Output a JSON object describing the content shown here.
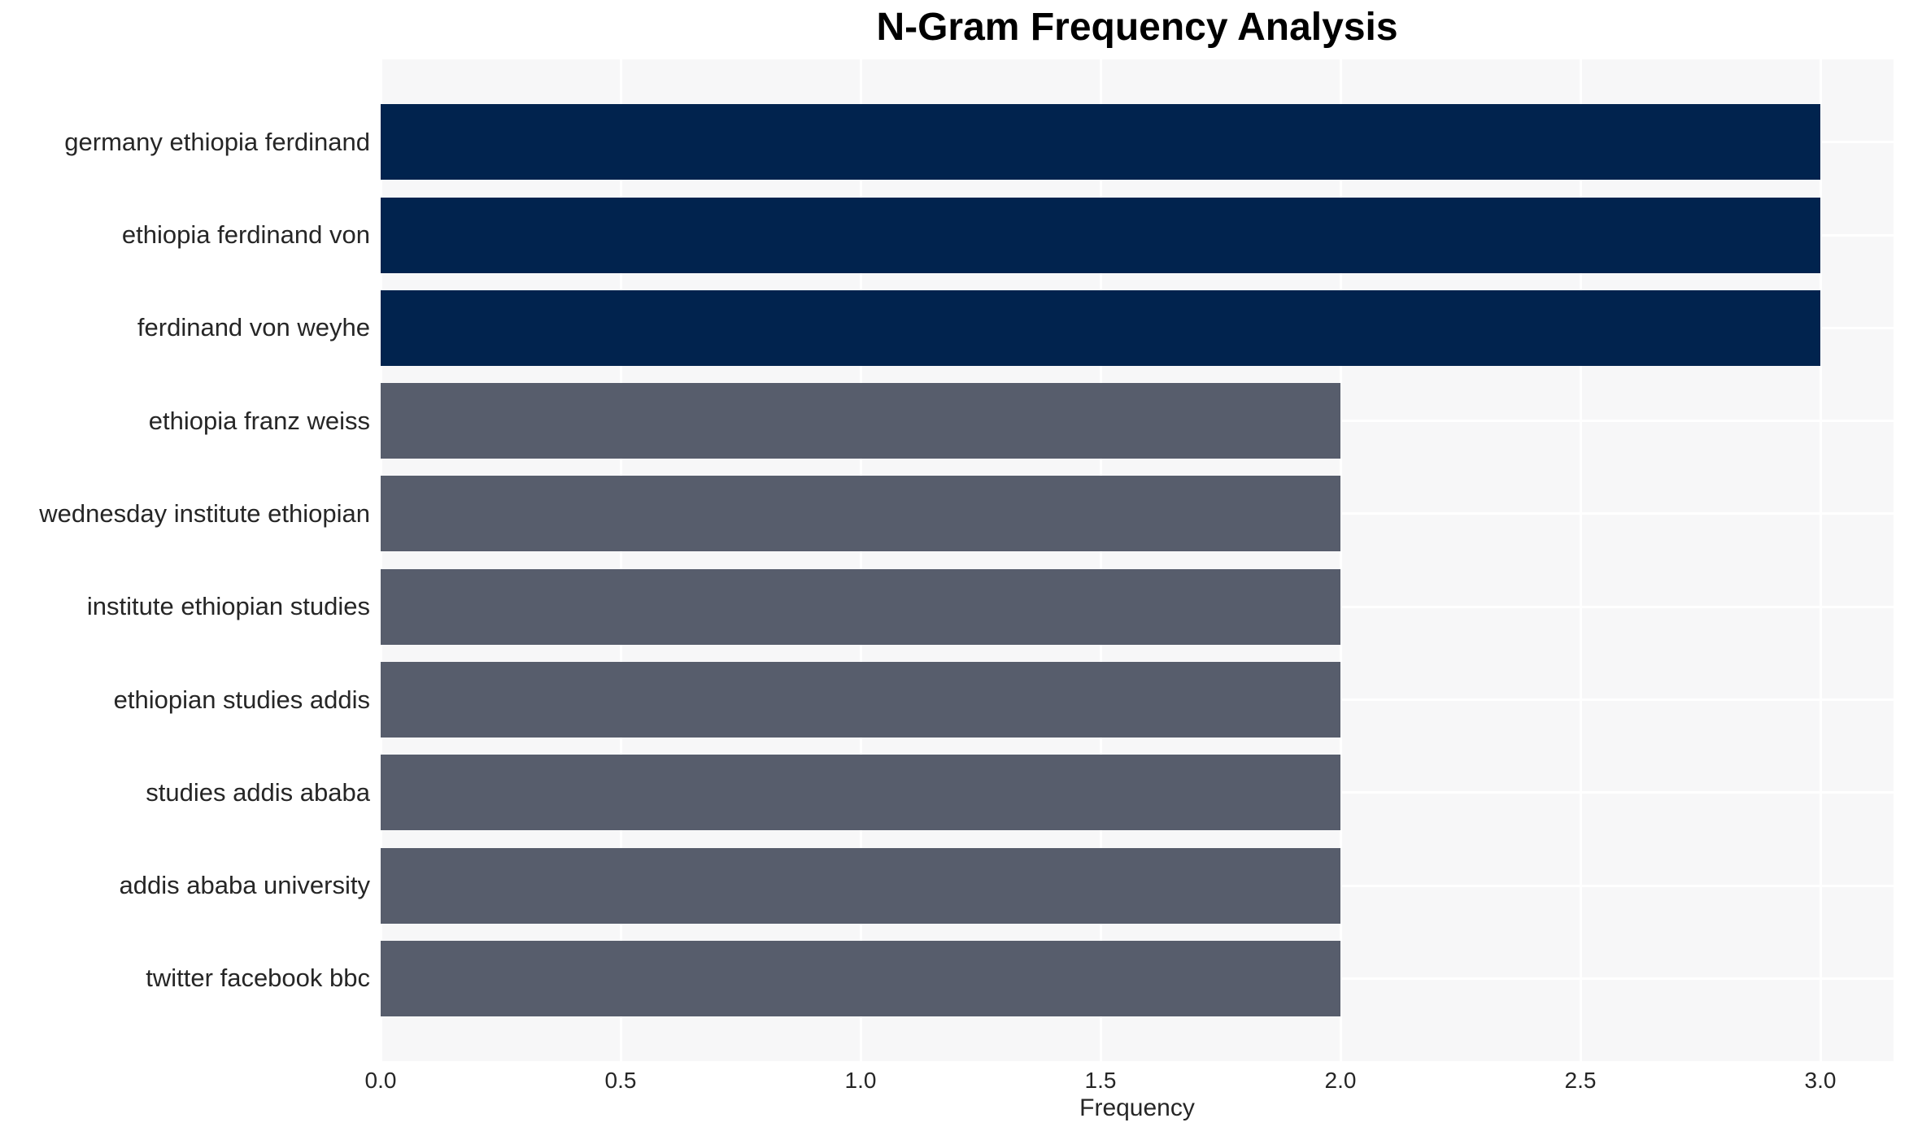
{
  "title": "N-Gram Frequency Analysis",
  "chart_data": {
    "type": "bar",
    "orientation": "horizontal",
    "title": "N-Gram Frequency Analysis",
    "xlabel": "Frequency",
    "ylabel": "",
    "categories": [
      "germany ethiopia ferdinand",
      "ethiopia ferdinand von",
      "ferdinand von weyhe",
      "ethiopia franz weiss",
      "wednesday institute ethiopian",
      "institute ethiopian studies",
      "ethiopian studies addis",
      "studies addis ababa",
      "addis ababa university",
      "twitter facebook bbc"
    ],
    "values": [
      3,
      3,
      3,
      2,
      2,
      2,
      2,
      2,
      2,
      2
    ],
    "bar_colors": [
      "#01234e",
      "#01234e",
      "#01234e",
      "#575d6c",
      "#575d6c",
      "#575d6c",
      "#575d6c",
      "#575d6c",
      "#575d6c",
      "#575d6c"
    ],
    "xticks": [
      0.0,
      0.5,
      1.0,
      1.5,
      2.0,
      2.5,
      3.0
    ],
    "xtick_labels": [
      "0.0",
      "0.5",
      "1.0",
      "1.5",
      "2.0",
      "2.5",
      "3.0"
    ],
    "xlim": [
      0,
      3.1525
    ],
    "grid": true,
    "legend": false,
    "plot_background": "#f7f7f8",
    "grid_color": "#ffffff",
    "high_value_color": "#01234e",
    "low_value_color": "#575d6c",
    "title_color": "#000000",
    "label_color": "#262626"
  }
}
